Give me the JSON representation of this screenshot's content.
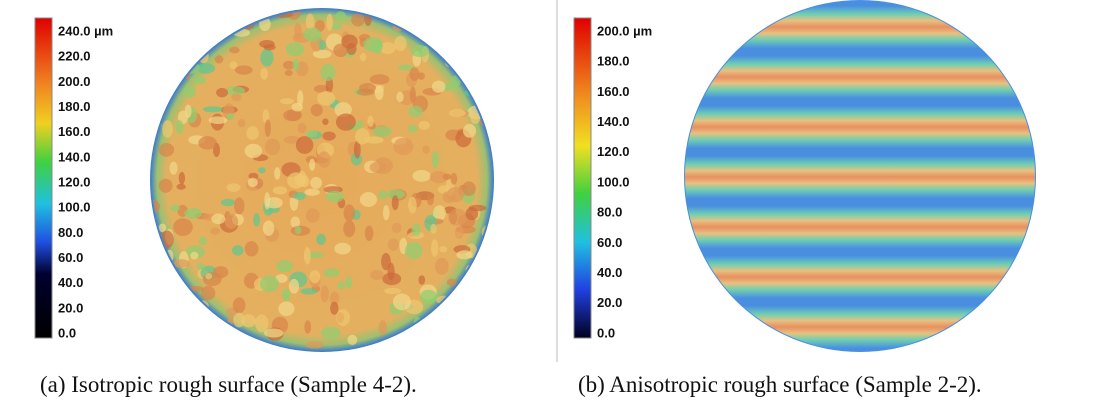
{
  "panels": [
    {
      "colorbar": {
        "ticks": [
          "240.0 µm",
          "220.0",
          "200.0",
          "180.0",
          "160.0",
          "140.0",
          "120.0",
          "100.0",
          "80.0",
          "60.0",
          "40.0",
          "20.0",
          "0.0"
        ]
      },
      "caption": "(a) Isotropic rough surface (Sample 4-2)."
    },
    {
      "colorbar": {
        "ticks": [
          "200.0 µm",
          "180.0",
          "160.0",
          "140.0",
          "120.0",
          "100.0",
          "80.0",
          "60.0",
          "40.0",
          "20.0",
          "0.0"
        ]
      },
      "caption": "(b) Anisotropic rough surface (Sample 2-2)."
    }
  ]
}
